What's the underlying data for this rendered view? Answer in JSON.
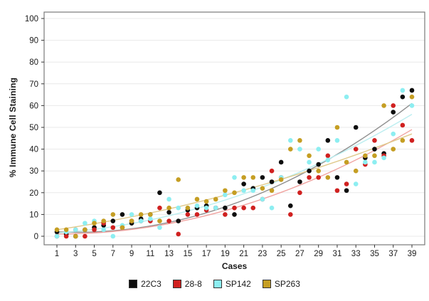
{
  "chart_data": {
    "type": "scatter",
    "title": "",
    "xlabel": "Cases",
    "ylabel": "% Immune Cell Staining",
    "x_tick_labels": [
      1,
      3,
      5,
      7,
      9,
      11,
      13,
      15,
      17,
      19,
      21,
      23,
      25,
      27,
      29,
      31,
      33,
      35,
      37,
      39
    ],
    "y_tick_labels": [
      0,
      10,
      20,
      30,
      40,
      50,
      60,
      70,
      80,
      90,
      100
    ],
    "xlim": [
      1,
      39
    ],
    "ylim": [
      0,
      100
    ],
    "grid": true,
    "legend_position": "bottom",
    "cases": [
      1,
      2,
      3,
      4,
      5,
      6,
      7,
      8,
      9,
      10,
      11,
      12,
      13,
      14,
      15,
      16,
      17,
      18,
      19,
      20,
      21,
      22,
      23,
      24,
      25,
      26,
      27,
      28,
      29,
      30,
      31,
      32,
      33,
      34,
      35,
      36,
      37,
      38,
      39
    ],
    "series": [
      {
        "name": "22C3",
        "marker_color": "#0d0d0d",
        "trend_color": "#8f8f8f",
        "trend": {
          "start": 2,
          "mid": 15,
          "end": 61
        },
        "values": [
          2,
          1,
          0,
          3,
          4,
          5,
          7,
          10,
          6,
          8,
          10,
          20,
          11,
          7,
          12,
          13,
          14,
          13,
          13,
          10,
          24,
          22,
          27,
          25,
          34,
          14,
          25,
          30,
          33,
          44,
          27,
          21,
          50,
          36,
          40,
          38,
          57,
          64,
          67
        ]
      },
      {
        "name": "28-8",
        "marker_color": "#d02120",
        "trend_color": "#f0a3a0",
        "trend": {
          "start": 1,
          "mid": 13,
          "end": 49
        },
        "values": [
          0,
          0,
          3,
          0,
          3,
          6,
          4,
          4,
          7,
          7,
          7,
          13,
          7,
          1,
          10,
          10,
          12,
          13,
          10,
          13,
          13,
          13,
          17,
          30,
          27,
          10,
          20,
          27,
          27,
          37,
          21,
          24,
          40,
          33,
          44,
          37,
          60,
          51,
          44
        ]
      },
      {
        "name": "SP142",
        "marker_color": "#8deef1",
        "trend_color": "#bceef0",
        "trend": {
          "start": 1.5,
          "mid": 18,
          "end": 56
        },
        "values": [
          0,
          2,
          3,
          6,
          7,
          3,
          0,
          5,
          10,
          7,
          8,
          4,
          17,
          13,
          13,
          14,
          13,
          13,
          19,
          27,
          21,
          21,
          17,
          13,
          27,
          44,
          40,
          34,
          40,
          35,
          44,
          64,
          24,
          34,
          34,
          36,
          47,
          67,
          60
        ]
      },
      {
        "name": "SP263",
        "marker_color": "#c59e23",
        "trend_color": "#dfc98a",
        "trend": {
          "start": 3,
          "mid": 20,
          "end": 47
        },
        "values": [
          3,
          3,
          0,
          3,
          6,
          7,
          10,
          4,
          7,
          10,
          10,
          7,
          13,
          26,
          13,
          17,
          16,
          17,
          21,
          20,
          27,
          27,
          22,
          21,
          26,
          40,
          44,
          37,
          30,
          27,
          50,
          34,
          30,
          37,
          37,
          60,
          40,
          44,
          64
        ]
      }
    ]
  }
}
